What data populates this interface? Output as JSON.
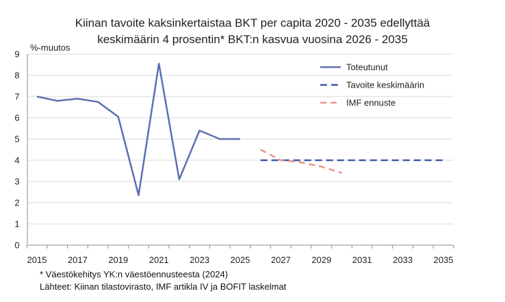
{
  "title_line1": "Kiinan tavoite kaksinkertaistaa BKT per capita 2020 - 2035 edellyttää",
  "title_line2": "keskimäärin 4 prosentin* BKT:n kasvua vuosina 2026 - 2035",
  "notes": {
    "footnote": "* Väestökehitys YK:n väestöennusteesta (2024)",
    "sources": "Lähteet: Kiinan tilastovirasto, IMF artikla IV ja BOFIT laskelmat"
  },
  "chart_data": {
    "type": "line",
    "ylabel": "%-muutos",
    "xlim": [
      2015,
      2035
    ],
    "ylim": [
      0,
      9
    ],
    "x_ticks": [
      "2015",
      "2017",
      "2019",
      "2021",
      "2023",
      "2025",
      "2027",
      "2029",
      "2031",
      "2033",
      "2035"
    ],
    "y_ticks": [
      "0",
      "1",
      "2",
      "3",
      "4",
      "5",
      "6",
      "7",
      "8",
      "9"
    ],
    "grid": true,
    "legend_position": "top-right",
    "series": [
      {
        "name": "Toteutunut",
        "color": "#5b6fb3",
        "style": "solid",
        "x": [
          2015,
          2016,
          2017,
          2018,
          2019,
          2020,
          2021,
          2022,
          2023,
          2024,
          2025
        ],
        "values": [
          7.0,
          6.8,
          6.9,
          6.75,
          6.05,
          2.35,
          8.55,
          3.1,
          5.4,
          5.0,
          5.0
        ]
      },
      {
        "name": "Tavoite keskimäärin",
        "color": "#3f58a8",
        "style": "dashed",
        "x": [
          2026,
          2035
        ],
        "values": [
          4.0,
          4.0
        ]
      },
      {
        "name": "IMF ennuste",
        "color": "#e8928a",
        "style": "dashed",
        "x": [
          2026,
          2027,
          2028,
          2029,
          2030
        ],
        "values": [
          4.5,
          4.0,
          3.9,
          3.7,
          3.4
        ]
      }
    ]
  }
}
